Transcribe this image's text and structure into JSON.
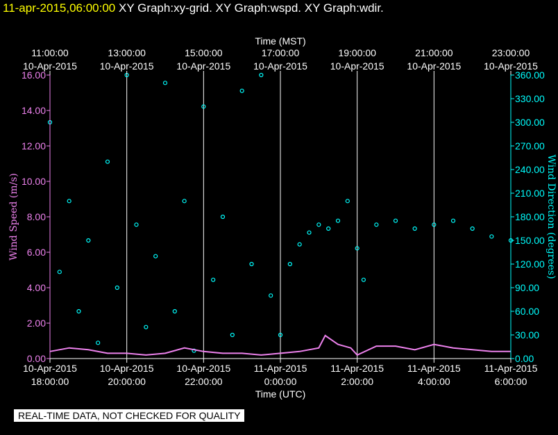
{
  "header": {
    "timestamp": "11-apr-2015,06:00:00",
    "graphs": [
      "XY Graph:xy-grid.",
      "XY Graph:wspd.",
      "XY Graph:wdir."
    ]
  },
  "notice": "REAL-TIME DATA, NOT CHECKED FOR QUALITY",
  "colors": {
    "speed": "#ee82ee",
    "direction": "#00ffff",
    "grid": "#ffffff",
    "axis_text": "#ffffff",
    "timestamp": "#ffff00"
  },
  "chart_data": {
    "type": "scatter",
    "top_axis": {
      "label": "Time (MST)",
      "ticks": [
        {
          "time": "11:00:00",
          "date": "10-Apr-2015"
        },
        {
          "time": "13:00:00",
          "date": "10-Apr-2015"
        },
        {
          "time": "15:00:00",
          "date": "10-Apr-2015"
        },
        {
          "time": "17:00:00",
          "date": "10-Apr-2015"
        },
        {
          "time": "19:00:00",
          "date": "10-Apr-2015"
        },
        {
          "time": "21:00:00",
          "date": "10-Apr-2015"
        },
        {
          "time": "23:00:00",
          "date": "10-Apr-2015"
        }
      ]
    },
    "bottom_axis": {
      "label": "Time (UTC)",
      "ticks": [
        {
          "date": "10-Apr-2015",
          "time": "18:00:00"
        },
        {
          "date": "10-Apr-2015",
          "time": "20:00:00"
        },
        {
          "date": "10-Apr-2015",
          "time": "22:00:00"
        },
        {
          "date": "11-Apr-2015",
          "time": "0:00:00"
        },
        {
          "date": "11-Apr-2015",
          "time": "2:00:00"
        },
        {
          "date": "11-Apr-2015",
          "time": "4:00:00"
        },
        {
          "date": "11-Apr-2015",
          "time": "6:00:00"
        }
      ]
    },
    "x_range_utc": [
      "2015-04-10 18:00:00",
      "2015-04-11 06:00:00"
    ],
    "vertical_grid": true,
    "left_axis": {
      "label": "Wind Speed (m/s)",
      "ylim": [
        0,
        16
      ],
      "ticks": [
        "0.00",
        "2.00",
        "4.00",
        "6.00",
        "8.00",
        "10.00",
        "12.00",
        "14.00",
        "16.00"
      ]
    },
    "right_axis": {
      "label": "Wind Direction (degrees)",
      "ylim": [
        0,
        360
      ],
      "ticks": [
        "0.00",
        "30.00",
        "60.00",
        "90.00",
        "120.00",
        "150.00",
        "180.00",
        "210.00",
        "240.00",
        "270.00",
        "300.00",
        "330.00",
        "360.00"
      ]
    },
    "series": [
      {
        "name": "wspd",
        "axis": "left",
        "marker": "line",
        "approx_points": [
          {
            "t": "2015-04-10 18:00",
            "y": 0.4
          },
          {
            "t": "2015-04-10 18:30",
            "y": 0.6
          },
          {
            "t": "2015-04-10 19:00",
            "y": 0.5
          },
          {
            "t": "2015-04-10 19:30",
            "y": 0.3
          },
          {
            "t": "2015-04-10 20:00",
            "y": 0.3
          },
          {
            "t": "2015-04-10 20:30",
            "y": 0.2
          },
          {
            "t": "2015-04-10 21:00",
            "y": 0.3
          },
          {
            "t": "2015-04-10 21:30",
            "y": 0.6
          },
          {
            "t": "2015-04-10 22:00",
            "y": 0.4
          },
          {
            "t": "2015-04-10 22:30",
            "y": 0.3
          },
          {
            "t": "2015-04-10 23:00",
            "y": 0.3
          },
          {
            "t": "2015-04-10 23:30",
            "y": 0.2
          },
          {
            "t": "2015-04-11 00:00",
            "y": 0.3
          },
          {
            "t": "2015-04-11 00:30",
            "y": 0.4
          },
          {
            "t": "2015-04-11 01:00",
            "y": 0.6
          },
          {
            "t": "2015-04-11 01:10",
            "y": 1.3
          },
          {
            "t": "2015-04-11 01:30",
            "y": 0.8
          },
          {
            "t": "2015-04-11 01:50",
            "y": 0.6
          },
          {
            "t": "2015-04-11 02:00",
            "y": 0.2
          },
          {
            "t": "2015-04-11 02:30",
            "y": 0.7
          },
          {
            "t": "2015-04-11 03:00",
            "y": 0.7
          },
          {
            "t": "2015-04-11 03:30",
            "y": 0.5
          },
          {
            "t": "2015-04-11 04:00",
            "y": 0.8
          },
          {
            "t": "2015-04-11 04:30",
            "y": 0.6
          },
          {
            "t": "2015-04-11 05:00",
            "y": 0.5
          },
          {
            "t": "2015-04-11 05:30",
            "y": 0.4
          },
          {
            "t": "2015-04-11 06:00",
            "y": 0.4
          }
        ]
      },
      {
        "name": "wdir",
        "axis": "right",
        "marker": "circle",
        "approx_points": [
          {
            "t": "2015-04-10 18:00",
            "y": 300
          },
          {
            "t": "2015-04-10 18:15",
            "y": 110
          },
          {
            "t": "2015-04-10 18:30",
            "y": 200
          },
          {
            "t": "2015-04-10 18:45",
            "y": 60
          },
          {
            "t": "2015-04-10 19:00",
            "y": 150
          },
          {
            "t": "2015-04-10 19:15",
            "y": 20
          },
          {
            "t": "2015-04-10 19:30",
            "y": 250
          },
          {
            "t": "2015-04-10 19:45",
            "y": 90
          },
          {
            "t": "2015-04-10 20:00",
            "y": 360
          },
          {
            "t": "2015-04-10 20:15",
            "y": 170
          },
          {
            "t": "2015-04-10 20:30",
            "y": 40
          },
          {
            "t": "2015-04-10 20:45",
            "y": 130
          },
          {
            "t": "2015-04-10 21:00",
            "y": 350
          },
          {
            "t": "2015-04-10 21:15",
            "y": 60
          },
          {
            "t": "2015-04-10 21:30",
            "y": 200
          },
          {
            "t": "2015-04-10 21:45",
            "y": 10
          },
          {
            "t": "2015-04-10 22:00",
            "y": 320
          },
          {
            "t": "2015-04-10 22:15",
            "y": 100
          },
          {
            "t": "2015-04-10 22:30",
            "y": 180
          },
          {
            "t": "2015-04-10 22:45",
            "y": 30
          },
          {
            "t": "2015-04-10 23:00",
            "y": 340
          },
          {
            "t": "2015-04-10 23:15",
            "y": 120
          },
          {
            "t": "2015-04-10 23:30",
            "y": 360
          },
          {
            "t": "2015-04-10 23:45",
            "y": 80
          },
          {
            "t": "2015-04-11 00:00",
            "y": 30
          },
          {
            "t": "2015-04-11 00:15",
            "y": 120
          },
          {
            "t": "2015-04-11 00:30",
            "y": 145
          },
          {
            "t": "2015-04-11 00:45",
            "y": 160
          },
          {
            "t": "2015-04-11 01:00",
            "y": 170
          },
          {
            "t": "2015-04-11 01:15",
            "y": 165
          },
          {
            "t": "2015-04-11 01:30",
            "y": 175
          },
          {
            "t": "2015-04-11 01:45",
            "y": 200
          },
          {
            "t": "2015-04-11 02:00",
            "y": 140
          },
          {
            "t": "2015-04-11 02:10",
            "y": 100
          },
          {
            "t": "2015-04-11 02:30",
            "y": 170
          },
          {
            "t": "2015-04-11 03:00",
            "y": 175
          },
          {
            "t": "2015-04-11 03:30",
            "y": 165
          },
          {
            "t": "2015-04-11 04:00",
            "y": 170
          },
          {
            "t": "2015-04-11 04:30",
            "y": 175
          },
          {
            "t": "2015-04-11 05:00",
            "y": 165
          },
          {
            "t": "2015-04-11 05:30",
            "y": 155
          },
          {
            "t": "2015-04-11 06:00",
            "y": 150
          }
        ]
      }
    ]
  }
}
